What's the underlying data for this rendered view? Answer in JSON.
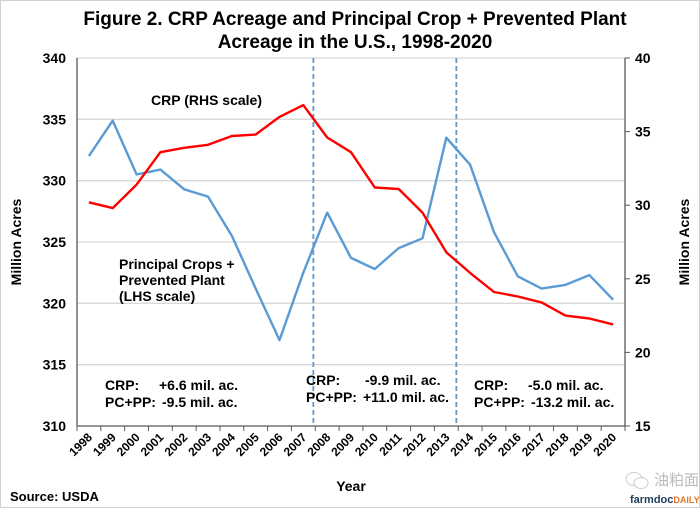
{
  "chart_data": {
    "type": "line",
    "title": "Figure 2. CRP Acreage and Principal Crop + Prevented Plant Acreage in the U.S., 1998-2020",
    "title_lines": [
      "Figure 2. CRP Acreage and Principal Crop + Prevented Plant",
      "Acreage in the U.S., 1998-2020"
    ],
    "xlabel": "Year",
    "ylabel_left": "Million Acres",
    "ylabel_right": "Million Acres",
    "categories": [
      "1998",
      "1999",
      "2000",
      "2001",
      "2002",
      "2003",
      "2004",
      "2005",
      "2006",
      "2007",
      "2008",
      "2009",
      "2010",
      "2011",
      "2012",
      "2013",
      "2014",
      "2015",
      "2016",
      "2017",
      "2018",
      "2019",
      "2020"
    ],
    "ylim_left": [
      310,
      340
    ],
    "yticks_left": [
      310,
      315,
      320,
      325,
      330,
      335,
      340
    ],
    "ylim_right": [
      15,
      40
    ],
    "yticks_right": [
      15,
      20,
      25,
      30,
      35,
      40
    ],
    "grid": true,
    "series": [
      {
        "name": "Principal Crops + Prevented Plant (LHS scale)",
        "axis": "left",
        "color": "#5b9bd5",
        "values": [
          332.0,
          334.9,
          330.5,
          330.9,
          329.3,
          328.7,
          325.5,
          321.2,
          317.0,
          322.5,
          327.4,
          323.7,
          322.8,
          324.5,
          325.3,
          333.5,
          331.3,
          325.8,
          322.2,
          321.2,
          321.5,
          322.3,
          320.3
        ]
      },
      {
        "name": "CRP (RHS scale)",
        "axis": "right",
        "color": "#ff0000",
        "values": [
          30.2,
          29.8,
          31.4,
          33.6,
          33.9,
          34.1,
          34.7,
          34.8,
          36.0,
          36.8,
          34.6,
          33.6,
          31.2,
          31.1,
          29.5,
          26.8,
          25.4,
          24.1,
          23.8,
          23.4,
          22.5,
          22.3,
          21.9
        ]
      }
    ],
    "series_labels": {
      "crp": "CRP (RHS scale)",
      "pcpp": [
        "Principal Crops +",
        "Prevented Plant",
        "(LHS scale)"
      ]
    },
    "vertical_markers": [
      {
        "year": "2007",
        "color": "#5b9bd5",
        "style": "dashed"
      },
      {
        "year": "2013",
        "color": "#5b9bd5",
        "style": "dashed"
      }
    ],
    "annotations": [
      {
        "period": "1998-2007",
        "crp_label": "CRP:",
        "crp_value": "+6.6 mil. ac.",
        "pcpp_label": "PC+PP:",
        "pcpp_value": "-9.5 mil. ac."
      },
      {
        "period": "2007-2013",
        "crp_label": "CRP:",
        "crp_value": "-9.9 mil. ac.",
        "pcpp_label": "PC+PP:",
        "pcpp_value": "+11.0 mil. ac."
      },
      {
        "period": "2013-2020",
        "crp_label": "CRP:",
        "crp_value": "-5.0 mil. ac.",
        "pcpp_label": "PC+PP:",
        "pcpp_value": "-13.2 mil. ac."
      }
    ],
    "source": "Source: USDA"
  },
  "watermark": {
    "wechat_text": "油粕面",
    "brand_main": "farmdoc",
    "brand_sub": "DAILY"
  },
  "colors": {
    "grid": "#d9d9d9",
    "axis": "#595959"
  }
}
